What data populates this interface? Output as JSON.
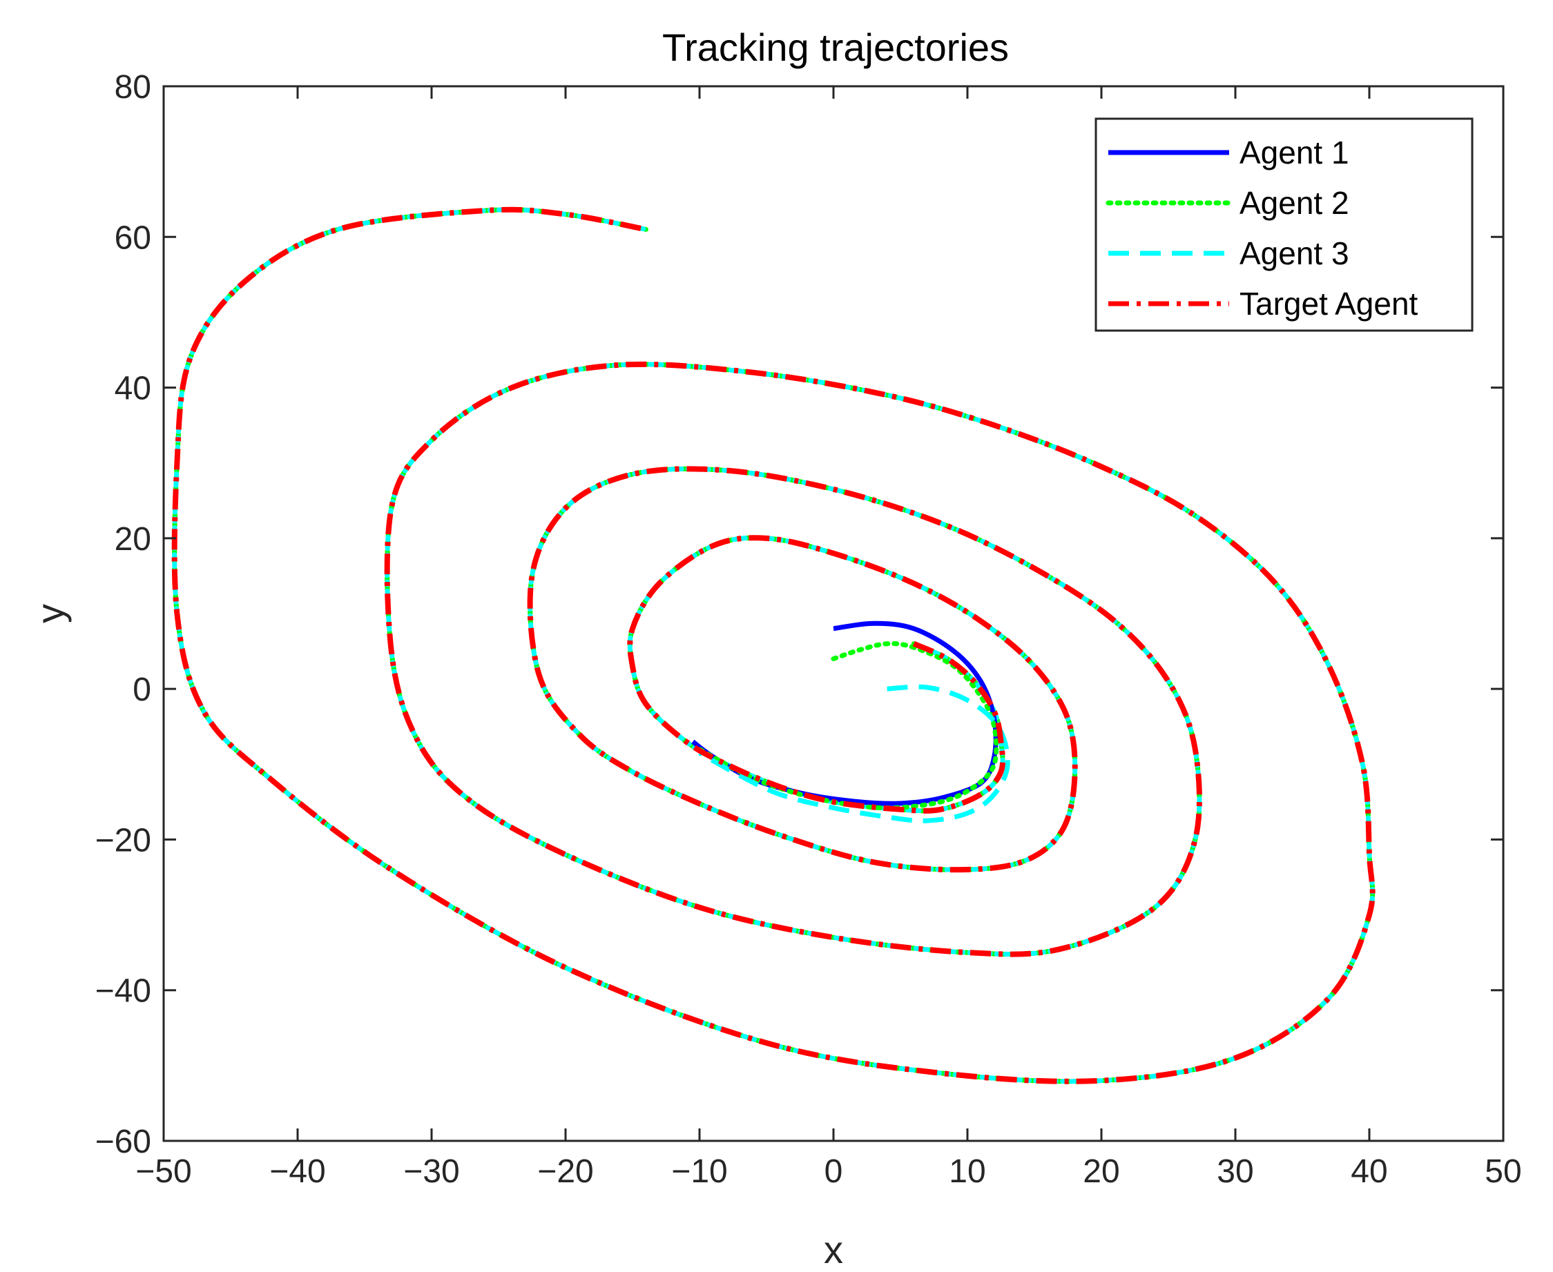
{
  "chart_data": {
    "type": "line",
    "title": "Tracking trajectories",
    "xlabel": "x",
    "ylabel": "y",
    "xlim": [
      -50,
      50
    ],
    "ylim": [
      -60,
      80
    ],
    "xticks": [
      -50,
      -40,
      -30,
      -20,
      -10,
      0,
      10,
      20,
      30,
      40,
      50
    ],
    "yticks": [
      -60,
      -40,
      -20,
      0,
      20,
      40,
      60,
      80
    ],
    "grid": false,
    "legend_position": "top-right",
    "series": [
      {
        "name": "Agent 1",
        "color": "#0000ff",
        "style": "solid",
        "points": [
          [
            0,
            8
          ],
          [
            3,
            8.7
          ],
          [
            6,
            8
          ],
          [
            9,
            5
          ],
          [
            11,
            1
          ],
          [
            12,
            -4
          ],
          [
            12,
            -9
          ],
          [
            11,
            -12.5
          ],
          [
            8,
            -14.5
          ],
          [
            5,
            -15.2
          ],
          [
            2,
            -15
          ],
          [
            -2,
            -14
          ],
          [
            -6,
            -12
          ],
          [
            -9,
            -9
          ],
          [
            -10.5,
            -7
          ]
        ]
      },
      {
        "name": "Agent 2",
        "color": "#00ff00",
        "style": "dotted",
        "points": [
          [
            0,
            4
          ],
          [
            2,
            5.2
          ],
          [
            4,
            6
          ],
          [
            6,
            5.5
          ],
          [
            9,
            3
          ],
          [
            11,
            -1
          ],
          [
            12,
            -5
          ],
          [
            12,
            -10
          ],
          [
            10.5,
            -13
          ],
          [
            8,
            -15
          ],
          [
            4,
            -15.8
          ],
          [
            0,
            -15
          ],
          [
            -4,
            -13.2
          ],
          [
            -7,
            -11
          ],
          [
            -10,
            -8
          ]
        ]
      },
      {
        "name": "Agent 3",
        "color": "#00ffff",
        "style": "dashed",
        "points": [
          [
            4,
            0
          ],
          [
            7,
            0.2
          ],
          [
            10,
            -1.5
          ],
          [
            12.3,
            -5
          ],
          [
            13,
            -10
          ],
          [
            12,
            -14
          ],
          [
            10,
            -16.5
          ],
          [
            7,
            -17.5
          ],
          [
            4,
            -17
          ],
          [
            0,
            -15.8
          ],
          [
            -4,
            -14
          ],
          [
            -7,
            -11.5
          ],
          [
            -10,
            -8.5
          ]
        ]
      },
      {
        "name": "Target Agent",
        "color": "#ff0000",
        "style": "dashdot",
        "points": [
          [
            6,
            6
          ],
          [
            8.5,
            4
          ],
          [
            10.5,
            1
          ],
          [
            12,
            -3
          ],
          [
            12.5,
            -7
          ],
          [
            12.5,
            -11
          ],
          [
            11,
            -14
          ],
          [
            8,
            -16
          ],
          [
            5,
            -16
          ],
          [
            0,
            -15
          ],
          [
            -4,
            -13
          ],
          [
            -8,
            -10
          ],
          [
            -11,
            -7
          ],
          [
            -14,
            -2
          ],
          [
            -15,
            3
          ],
          [
            -15,
            8
          ],
          [
            -13,
            14
          ],
          [
            -9,
            19
          ],
          [
            -5,
            20
          ],
          [
            0,
            18
          ],
          [
            6,
            14
          ],
          [
            11,
            9
          ],
          [
            15,
            3
          ],
          [
            17.5,
            -4
          ],
          [
            18,
            -12
          ],
          [
            17,
            -19
          ],
          [
            14,
            -23
          ],
          [
            9,
            -24
          ],
          [
            3,
            -23
          ],
          [
            -3,
            -20
          ],
          [
            -9,
            -16
          ],
          [
            -15,
            -11
          ],
          [
            -19,
            -6
          ],
          [
            -22,
            2
          ],
          [
            -22.5,
            15
          ],
          [
            -20,
            24
          ],
          [
            -15,
            28.5
          ],
          [
            -8,
            29
          ],
          [
            0,
            26.5
          ],
          [
            8,
            22
          ],
          [
            15,
            16
          ],
          [
            21,
            9
          ],
          [
            25,
            1
          ],
          [
            27,
            -8
          ],
          [
            27,
            -20
          ],
          [
            24,
            -29
          ],
          [
            17,
            -34.5
          ],
          [
            10,
            -35
          ],
          [
            0,
            -33
          ],
          [
            -10,
            -29
          ],
          [
            -20,
            -22
          ],
          [
            -27,
            -15
          ],
          [
            -31,
            -7
          ],
          [
            -33,
            5
          ],
          [
            -33,
            24
          ],
          [
            -30,
            33
          ],
          [
            -24,
            40
          ],
          [
            -16,
            43
          ],
          [
            -6,
            42
          ],
          [
            4,
            39
          ],
          [
            12,
            35
          ],
          [
            20,
            29.5
          ],
          [
            27,
            23
          ],
          [
            33,
            14
          ],
          [
            37,
            3
          ],
          [
            39.5,
            -10
          ],
          [
            40,
            -22
          ],
          [
            40,
            -30
          ],
          [
            37,
            -41
          ],
          [
            30,
            -49
          ],
          [
            20,
            -52
          ],
          [
            8,
            -51
          ],
          [
            -5,
            -47
          ],
          [
            -20,
            -37
          ],
          [
            -33,
            -24
          ],
          [
            -42,
            -12
          ],
          [
            -47,
            -3
          ],
          [
            -49,
            10
          ],
          [
            -49,
            30
          ],
          [
            -48,
            44
          ],
          [
            -44,
            54
          ],
          [
            -37,
            61
          ],
          [
            -26,
            63.5
          ],
          [
            -20,
            63
          ],
          [
            -14,
            61
          ]
        ]
      }
    ]
  }
}
